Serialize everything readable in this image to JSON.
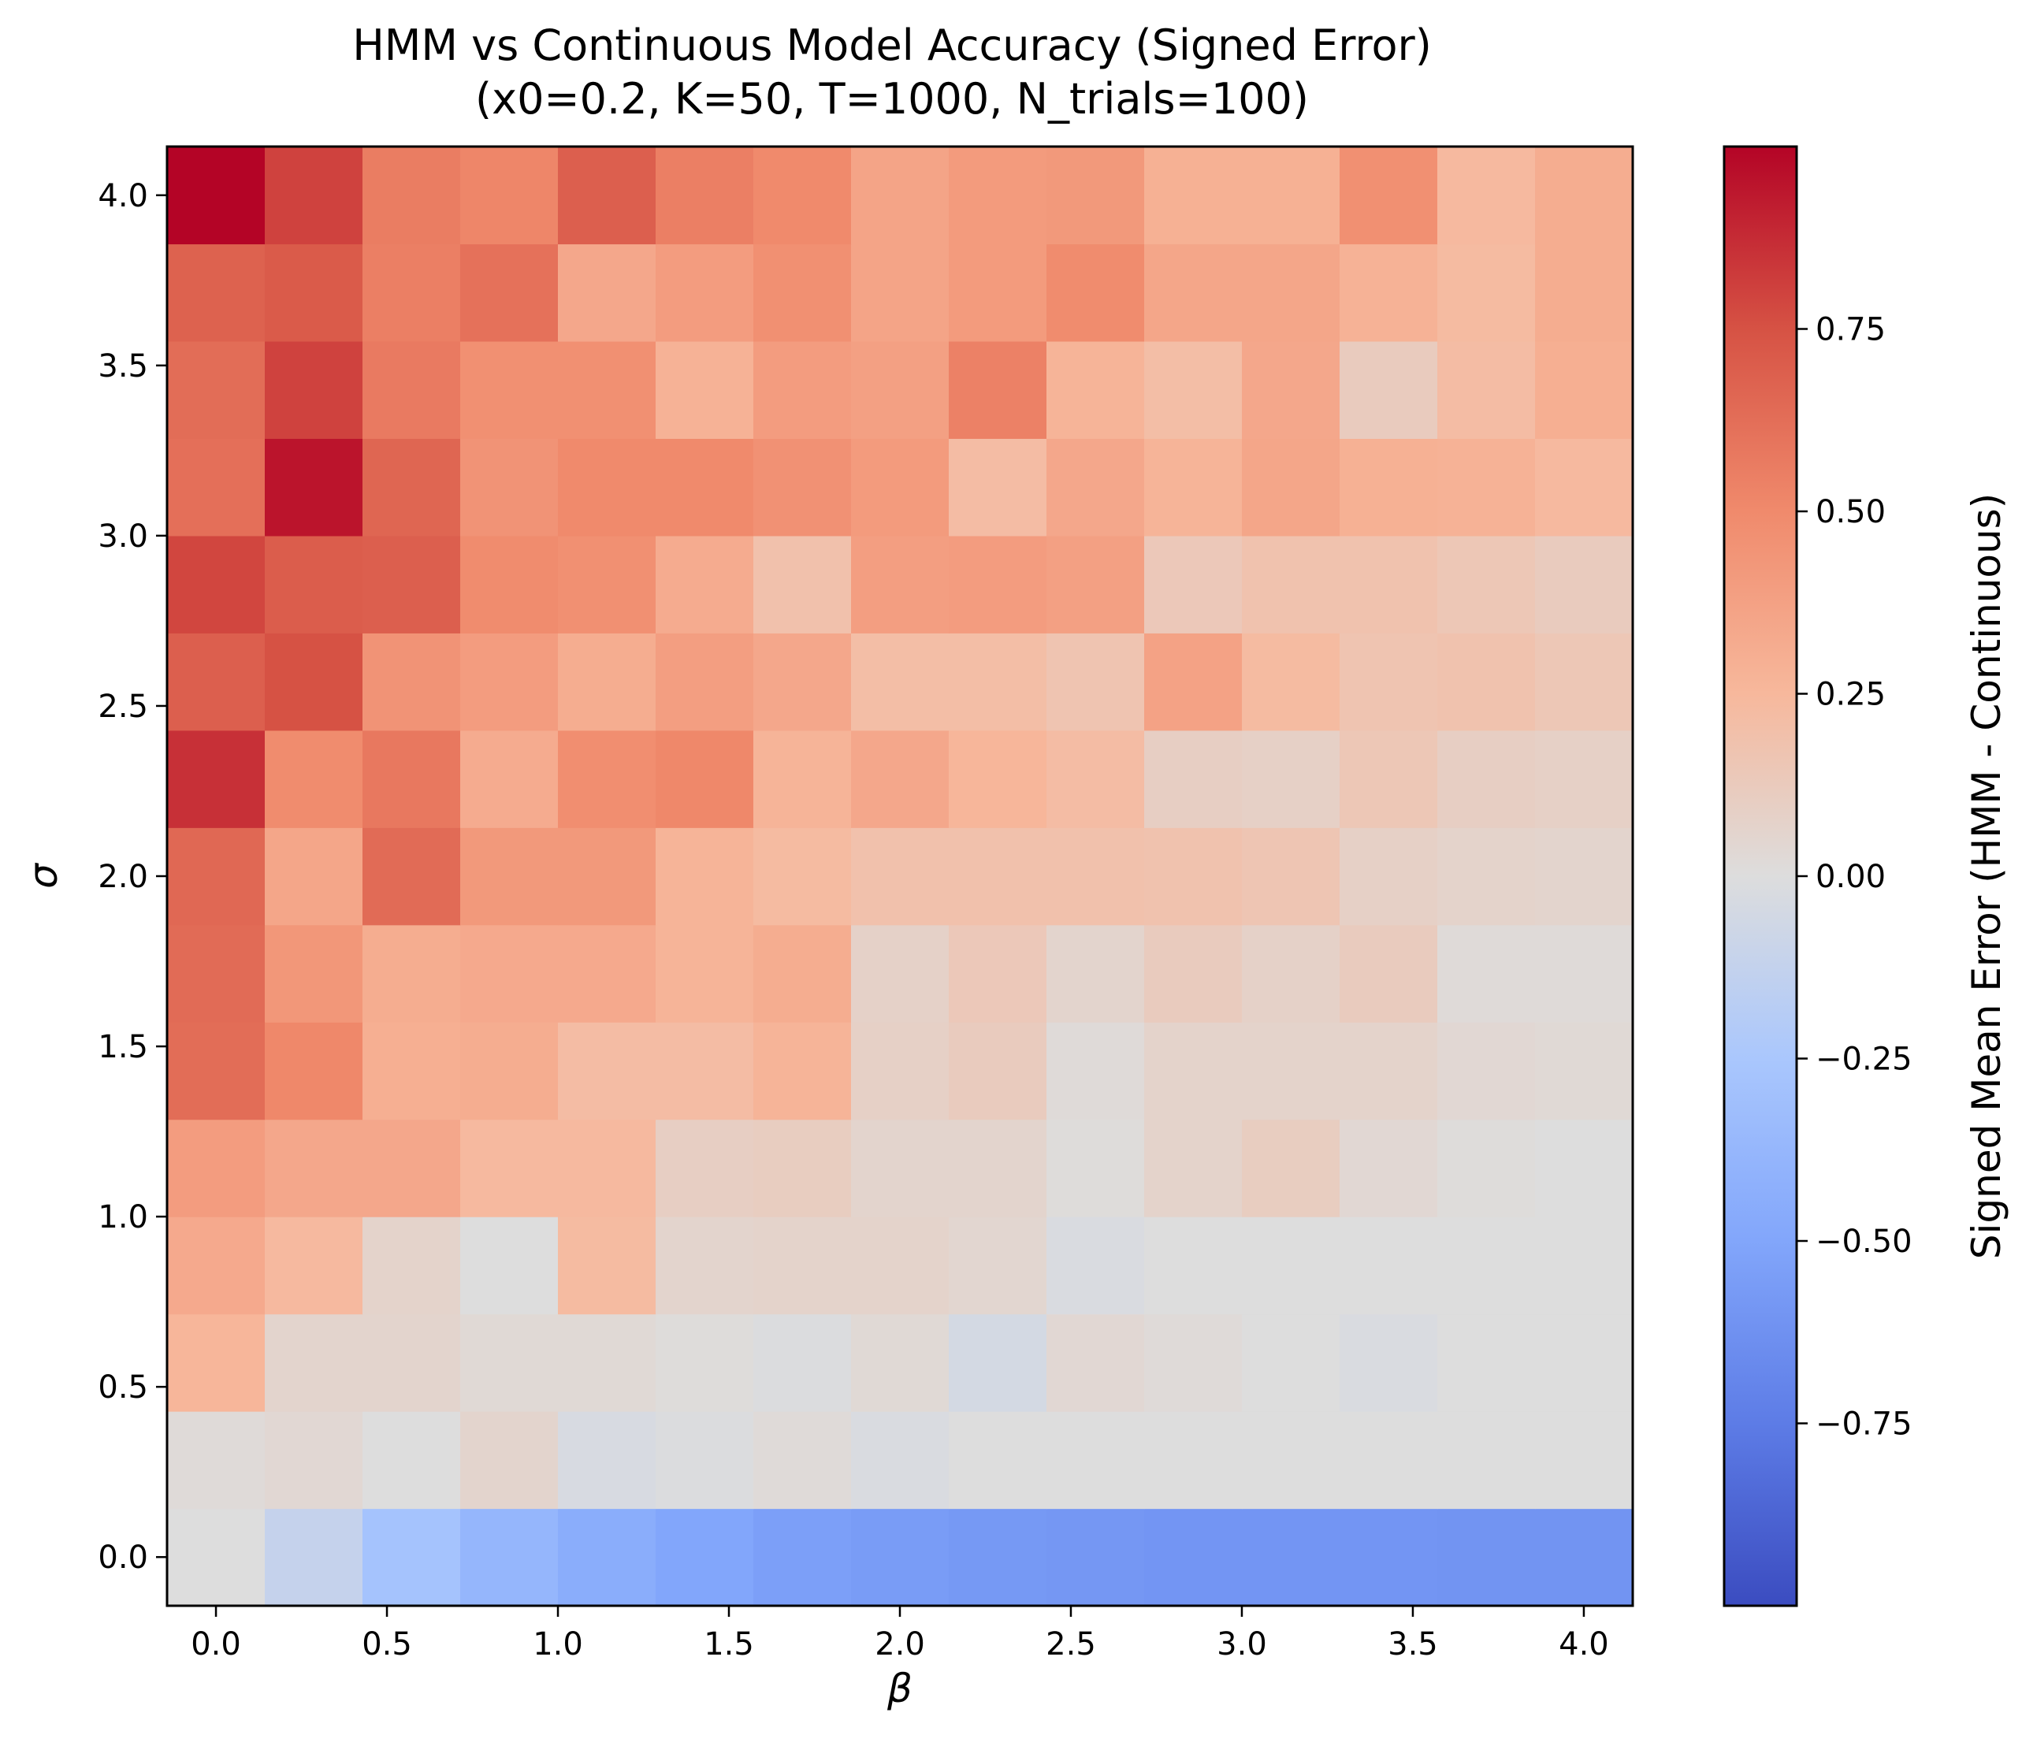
{
  "chart_data": {
    "type": "heatmap",
    "title": "HMM vs Continuous Model Accuracy (Signed Error)",
    "subtitle": "(x0=0.2, K=50, T=1000, N_trials=100)",
    "xlabel": "β",
    "ylabel": "σ",
    "x": [
      0.0,
      0.286,
      0.571,
      0.857,
      1.143,
      1.429,
      1.714,
      2.0,
      2.286,
      2.571,
      2.857,
      3.143,
      3.429,
      3.714,
      4.0
    ],
    "y": [
      0.0,
      0.286,
      0.571,
      0.857,
      1.143,
      1.429,
      1.714,
      2.0,
      2.286,
      2.571,
      2.857,
      3.143,
      3.429,
      3.714,
      4.0
    ],
    "xticks": [
      "0.0",
      "0.5",
      "1.0",
      "1.5",
      "2.0",
      "2.5",
      "3.0",
      "3.5",
      "4.0"
    ],
    "yticks": [
      "0.0",
      "0.5",
      "1.0",
      "1.5",
      "2.0",
      "2.5",
      "3.0",
      "3.5",
      "4.0"
    ],
    "xlim": [
      -0.143,
      4.143
    ],
    "ylim": [
      -0.143,
      4.143
    ],
    "values": [
      [
        0.0,
        -0.12,
        -0.28,
        -0.38,
        -0.45,
        -0.5,
        -0.54,
        -0.56,
        -0.58,
        -0.59,
        -0.6,
        -0.6,
        -0.6,
        -0.61,
        -0.61
      ],
      [
        0.02,
        0.04,
        0.0,
        0.06,
        -0.03,
        -0.01,
        0.02,
        -0.02,
        0.0,
        0.0,
        0.0,
        0.0,
        0.0,
        0.0,
        0.0
      ],
      [
        0.26,
        0.06,
        0.06,
        0.03,
        0.03,
        0.01,
        -0.01,
        0.03,
        -0.05,
        0.04,
        0.02,
        0.0,
        -0.02,
        0.0,
        0.0
      ],
      [
        0.33,
        0.24,
        0.07,
        0.0,
        0.23,
        0.06,
        0.07,
        0.07,
        0.05,
        -0.02,
        0.0,
        0.0,
        0.0,
        0.0,
        0.0
      ],
      [
        0.4,
        0.34,
        0.34,
        0.24,
        0.24,
        0.1,
        0.11,
        0.06,
        0.06,
        0.01,
        0.07,
        0.11,
        0.04,
        0.01,
        0.0
      ],
      [
        0.63,
        0.51,
        0.3,
        0.31,
        0.22,
        0.22,
        0.27,
        0.09,
        0.12,
        0.02,
        0.07,
        0.07,
        0.07,
        0.04,
        0.03
      ],
      [
        0.64,
        0.43,
        0.31,
        0.33,
        0.33,
        0.27,
        0.31,
        0.08,
        0.14,
        0.06,
        0.12,
        0.08,
        0.12,
        0.02,
        0.02
      ],
      [
        0.65,
        0.35,
        0.64,
        0.42,
        0.42,
        0.27,
        0.23,
        0.19,
        0.19,
        0.19,
        0.18,
        0.16,
        0.09,
        0.07,
        0.06
      ],
      [
        0.86,
        0.49,
        0.58,
        0.32,
        0.48,
        0.51,
        0.27,
        0.34,
        0.26,
        0.22,
        0.1,
        0.09,
        0.15,
        0.1,
        0.09
      ],
      [
        0.69,
        0.75,
        0.45,
        0.4,
        0.31,
        0.39,
        0.34,
        0.21,
        0.21,
        0.17,
        0.37,
        0.23,
        0.17,
        0.18,
        0.15
      ],
      [
        0.79,
        0.7,
        0.69,
        0.49,
        0.47,
        0.32,
        0.19,
        0.39,
        0.4,
        0.38,
        0.14,
        0.18,
        0.18,
        0.15,
        0.12
      ],
      [
        0.62,
        0.95,
        0.66,
        0.45,
        0.5,
        0.5,
        0.46,
        0.41,
        0.22,
        0.34,
        0.27,
        0.35,
        0.29,
        0.28,
        0.24
      ],
      [
        0.63,
        0.8,
        0.57,
        0.47,
        0.47,
        0.28,
        0.4,
        0.38,
        0.54,
        0.27,
        0.21,
        0.34,
        0.12,
        0.22,
        0.3
      ],
      [
        0.68,
        0.71,
        0.55,
        0.61,
        0.34,
        0.4,
        0.47,
        0.36,
        0.41,
        0.49,
        0.35,
        0.35,
        0.28,
        0.23,
        0.31
      ],
      [
        1.0,
        0.8,
        0.56,
        0.52,
        0.69,
        0.55,
        0.5,
        0.36,
        0.41,
        0.42,
        0.29,
        0.29,
        0.47,
        0.24,
        0.31
      ]
    ],
    "colorbar": {
      "label": "Signed Mean Error (HMM - Continuous)",
      "colormap": "coolwarm",
      "range": [
        -1.0,
        1.0
      ],
      "ticks": [
        "−0.75",
        "−0.50",
        "−0.25",
        "0.00",
        "0.25",
        "0.50",
        "0.75"
      ],
      "tick_values": [
        -0.75,
        -0.5,
        -0.25,
        0.0,
        0.25,
        0.5,
        0.75
      ]
    },
    "grid": false
  }
}
